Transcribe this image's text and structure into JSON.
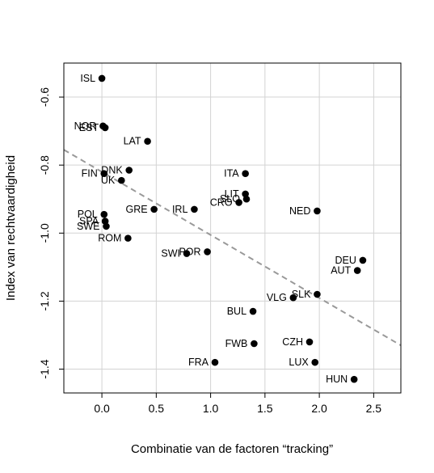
{
  "chart_data": {
    "type": "scatter",
    "title": "",
    "xlabel": "Combinatie van de factoren “tracking”",
    "ylabel": "Index van rechtvaardigheid",
    "xlim": [
      -0.35,
      2.75
    ],
    "ylim": [
      -1.47,
      -0.5
    ],
    "x_ticks": [
      0.0,
      0.5,
      1.0,
      1.5,
      2.0,
      2.5
    ],
    "x_tick_labels": [
      "0.0",
      "0.5",
      "1.0",
      "1.5",
      "2.0",
      "2.5"
    ],
    "y_ticks": [
      -0.6,
      -0.8,
      -1.0,
      -1.2,
      -1.4
    ],
    "y_tick_labels": [
      "-0.6",
      "-0.8",
      "-1.0",
      "-1.2",
      "-1.4"
    ],
    "grid": true,
    "point_color": "#000000",
    "trend_line": {
      "style": "dashed",
      "color": "#999999",
      "x": [
        -0.35,
        2.75
      ],
      "y": [
        -0.755,
        -1.33
      ]
    },
    "points": [
      {
        "label": "ISL",
        "x": 0.0,
        "y": -0.545,
        "label_side": "left"
      },
      {
        "label": "NOR",
        "x": 0.01,
        "y": -0.685,
        "label_side": "left"
      },
      {
        "label": "EST",
        "x": 0.03,
        "y": -0.69,
        "label_side": "left"
      },
      {
        "label": "LAT",
        "x": 0.42,
        "y": -0.73,
        "label_side": "left"
      },
      {
        "label": "DNK",
        "x": 0.25,
        "y": -0.815,
        "label_side": "left"
      },
      {
        "label": "FIN",
        "x": 0.02,
        "y": -0.825,
        "label_side": "left"
      },
      {
        "label": "UK",
        "x": 0.18,
        "y": -0.845,
        "label_side": "left"
      },
      {
        "label": "GRE",
        "x": 0.48,
        "y": -0.93,
        "label_side": "left"
      },
      {
        "label": "POL",
        "x": 0.02,
        "y": -0.945,
        "label_side": "left"
      },
      {
        "label": "SPA",
        "x": 0.03,
        "y": -0.965,
        "label_side": "left"
      },
      {
        "label": "SWE",
        "x": 0.04,
        "y": -0.98,
        "label_side": "left"
      },
      {
        "label": "ROM",
        "x": 0.24,
        "y": -1.015,
        "label_side": "left"
      },
      {
        "label": "IRL",
        "x": 0.85,
        "y": -0.93,
        "label_side": "left"
      },
      {
        "label": "SWI",
        "x": 0.78,
        "y": -1.06,
        "label_side": "left"
      },
      {
        "label": "POR",
        "x": 0.97,
        "y": -1.055,
        "label_side": "left"
      },
      {
        "label": "ITA",
        "x": 1.32,
        "y": -0.825,
        "label_side": "left"
      },
      {
        "label": "LIT",
        "x": 1.32,
        "y": -0.885,
        "label_side": "left"
      },
      {
        "label": "SLO",
        "x": 1.33,
        "y": -0.9,
        "label_side": "left"
      },
      {
        "label": "CRO",
        "x": 1.26,
        "y": -0.91,
        "label_side": "left"
      },
      {
        "label": "NED",
        "x": 1.98,
        "y": -0.935,
        "label_side": "left"
      },
      {
        "label": "DEU",
        "x": 2.4,
        "y": -1.08,
        "label_side": "left"
      },
      {
        "label": "AUT",
        "x": 2.35,
        "y": -1.11,
        "label_side": "left"
      },
      {
        "label": "SLK",
        "x": 1.98,
        "y": -1.18,
        "label_side": "left"
      },
      {
        "label": "VLG",
        "x": 1.76,
        "y": -1.19,
        "label_side": "left"
      },
      {
        "label": "BUL",
        "x": 1.39,
        "y": -1.23,
        "label_side": "left"
      },
      {
        "label": "CZH",
        "x": 1.91,
        "y": -1.32,
        "label_side": "left"
      },
      {
        "label": "FWB",
        "x": 1.4,
        "y": -1.325,
        "label_side": "left"
      },
      {
        "label": "FRA",
        "x": 1.04,
        "y": -1.38,
        "label_side": "left"
      },
      {
        "label": "LUX",
        "x": 1.96,
        "y": -1.38,
        "label_side": "left"
      },
      {
        "label": "HUN",
        "x": 2.32,
        "y": -1.43,
        "label_side": "left"
      }
    ]
  }
}
